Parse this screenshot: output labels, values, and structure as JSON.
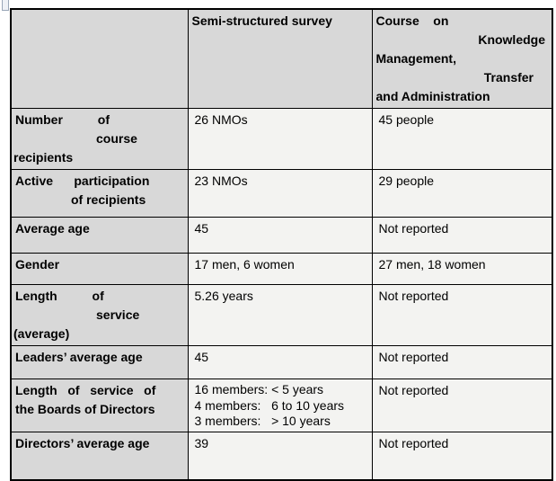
{
  "header": {
    "col1": "",
    "col2": "Semi-structured survey",
    "col3_lines": [
      "Course    on",
      "Knowledge",
      "Management,",
      "Transfer",
      "and Administration"
    ]
  },
  "rows": [
    {
      "label_lines": [
        "Number          of",
        "course",
        "recipients"
      ],
      "col2_lines": [
        "26 NMOs"
      ],
      "col3_lines": [
        "45 people"
      ]
    },
    {
      "label_lines": [
        "Active      participation",
        "of recipients"
      ],
      "col2_lines": [
        "23 NMOs"
      ],
      "col3_lines": [
        "29 people"
      ]
    },
    {
      "label_lines": [
        "Average age"
      ],
      "col2_lines": [
        "45"
      ],
      "col3_lines": [
        "Not reported"
      ]
    },
    {
      "label_lines": [
        "Gender"
      ],
      "col2_lines": [
        "17 men, 6 women"
      ],
      "col3_lines": [
        "27 men, 18 women"
      ]
    },
    {
      "label_lines": [
        "Length          of",
        "service",
        "(average)"
      ],
      "col2_lines": [
        "5.26 years"
      ],
      "col3_lines": [
        "Not reported"
      ]
    },
    {
      "label_lines": [
        "Leaders’ average age"
      ],
      "col2_lines": [
        "45"
      ],
      "col3_lines": [
        "Not reported"
      ]
    },
    {
      "label_lines": [
        "Length   of   service   of",
        "the Boards of Directors"
      ],
      "col2_lines": [
        "16 members: < 5 years",
        "4 members:   6 to 10 years",
        "3 members:   > 10 years"
      ],
      "col3_lines": [
        "Not reported"
      ]
    },
    {
      "label_lines": [
        "Directors’ average age"
      ],
      "col2_lines": [
        "39"
      ],
      "col3_lines": [
        "Not reported"
      ]
    }
  ],
  "colors": {
    "header_bg": "#d8d8d8",
    "label_bg": "#d8d8d8",
    "cell_bg": "#f3f3f1",
    "border": "#000000"
  }
}
